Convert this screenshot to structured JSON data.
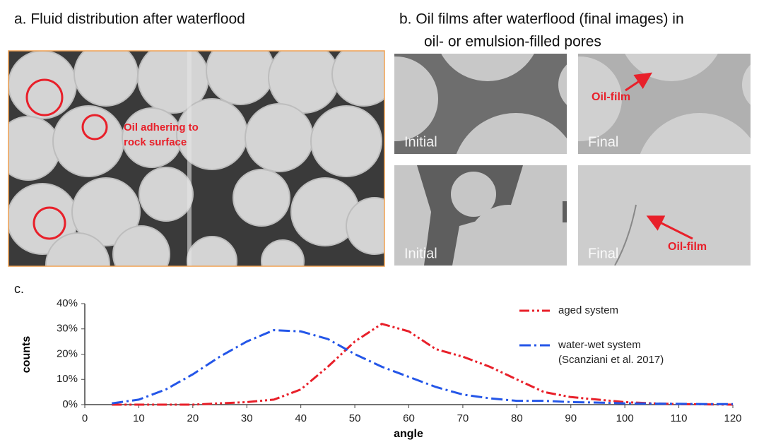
{
  "panel_a": {
    "title": "a. Fluid distribution after waterflood",
    "annotation": [
      "Oil adhering to",
      "rock surface"
    ]
  },
  "panel_b": {
    "title": [
      "b. Oil films after waterflood (final images) in",
      "oil- or emulsion-filled pores"
    ],
    "images": [
      {
        "label": "Initial"
      },
      {
        "label": "Final",
        "annotation": "Oil-film"
      },
      {
        "label": "Initial"
      },
      {
        "label": "Final",
        "annotation": "Oil-film"
      }
    ]
  },
  "chart_data": {
    "type": "line",
    "panel_label": "c.",
    "xlabel": "angle",
    "ylabel": "counts",
    "x": [
      5,
      10,
      15,
      20,
      25,
      30,
      35,
      40,
      45,
      50,
      55,
      60,
      65,
      70,
      75,
      80,
      85,
      90,
      95,
      100,
      105,
      110,
      115,
      120
    ],
    "series": [
      {
        "name": "aged system",
        "color": "#e8202a",
        "dash": "14,4,3,4,3,4",
        "values": [
          0,
          0,
          0,
          0,
          0.5,
          1,
          2,
          6,
          15,
          25,
          32,
          29,
          22,
          19,
          15,
          10,
          5,
          3,
          2,
          1,
          0.5,
          0.2,
          0.1,
          0
        ]
      },
      {
        "name": "water-wet system",
        "note": "(Scanziani et al. 2017)",
        "color": "#2456e8",
        "dash": "16,5,3,5",
        "values": [
          0.5,
          2,
          6,
          12,
          19,
          25,
          29.5,
          29,
          26,
          20,
          15,
          11,
          7,
          4,
          2.5,
          1.5,
          1.5,
          1,
          0.8,
          0.5,
          0.4,
          0.3,
          0.2,
          0.2
        ]
      }
    ],
    "xlim": [
      0,
      120
    ],
    "xticks": [
      0,
      10,
      20,
      30,
      40,
      50,
      60,
      70,
      80,
      90,
      100,
      110,
      120
    ],
    "ylim": [
      0,
      40
    ],
    "yticks": [
      {
        "value": 0,
        "label": "0%"
      },
      {
        "value": 10,
        "label": "10%"
      },
      {
        "value": 20,
        "label": "20%"
      },
      {
        "value": 30,
        "label": "30%"
      },
      {
        "value": 40,
        "label": "40%"
      }
    ]
  }
}
